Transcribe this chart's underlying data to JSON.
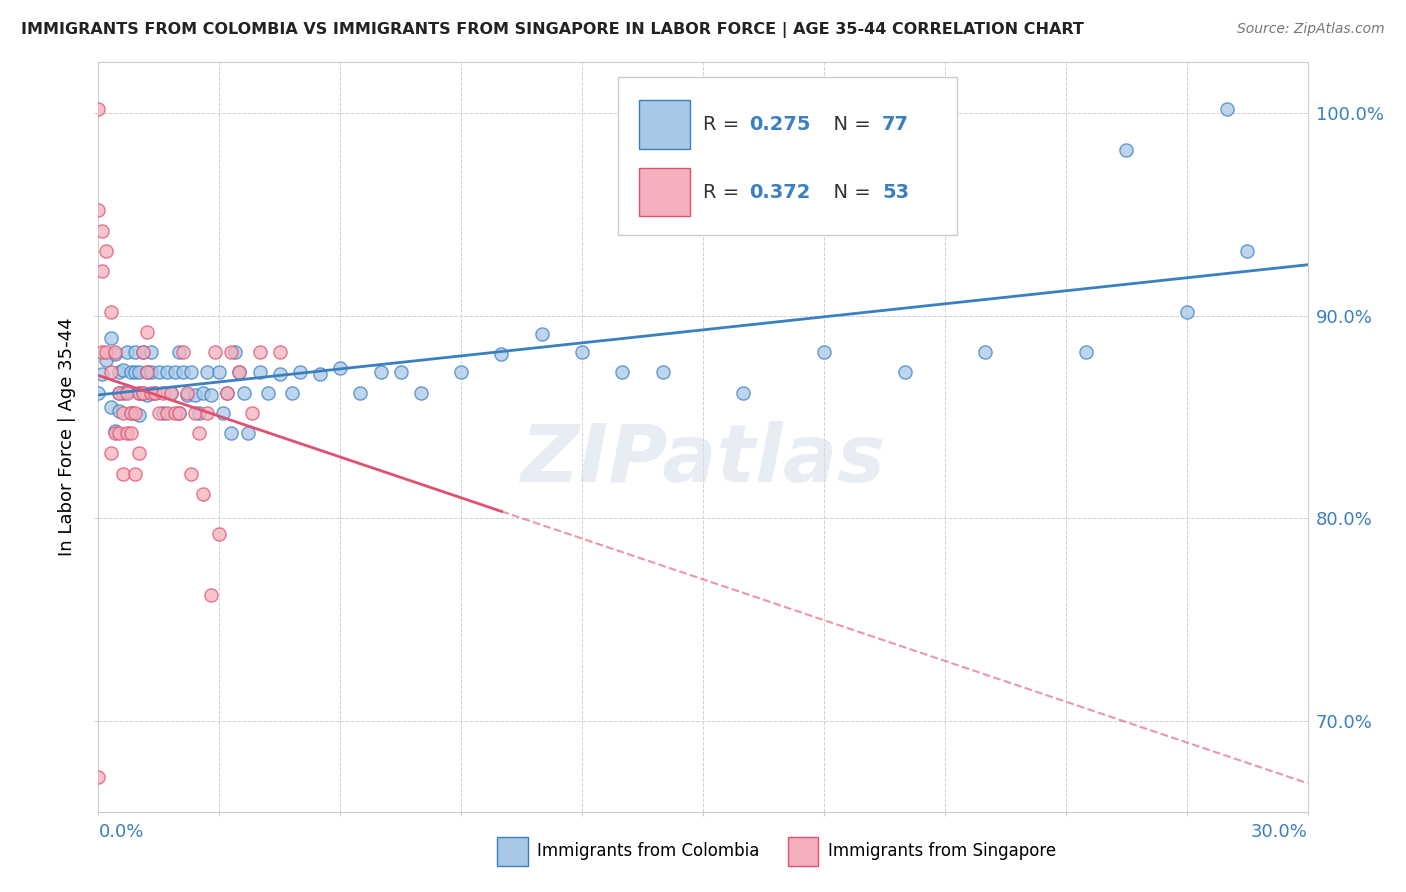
{
  "title": "IMMIGRANTS FROM COLOMBIA VS IMMIGRANTS FROM SINGAPORE IN LABOR FORCE | AGE 35-44 CORRELATION CHART",
  "source": "Source: ZipAtlas.com",
  "ylabel": "In Labor Force | Age 35-44",
  "colombia_color": "#a8c8e8",
  "singapore_color": "#f4b0bc",
  "trend_colombia_color": "#3a7fc1",
  "trend_singapore_color": "#e05070",
  "watermark": "ZIPatlas",
  "xlim": [
    0.0,
    0.3
  ],
  "ylim": [
    0.655,
    1.025
  ],
  "y_ticks": [
    0.7,
    0.8,
    0.9,
    1.0
  ],
  "colombia_scatter_x": [
    0.0,
    0.001,
    0.002,
    0.003,
    0.003,
    0.004,
    0.004,
    0.005,
    0.005,
    0.005,
    0.006,
    0.006,
    0.007,
    0.007,
    0.008,
    0.008,
    0.009,
    0.009,
    0.01,
    0.01,
    0.01,
    0.011,
    0.011,
    0.012,
    0.012,
    0.013,
    0.013,
    0.014,
    0.015,
    0.016,
    0.017,
    0.018,
    0.019,
    0.02,
    0.02,
    0.021,
    0.022,
    0.023,
    0.024,
    0.025,
    0.026,
    0.027,
    0.028,
    0.03,
    0.031,
    0.032,
    0.033,
    0.034,
    0.035,
    0.036,
    0.037,
    0.04,
    0.042,
    0.045,
    0.048,
    0.05,
    0.055,
    0.06,
    0.065,
    0.07,
    0.075,
    0.08,
    0.09,
    0.1,
    0.11,
    0.12,
    0.13,
    0.14,
    0.16,
    0.18,
    0.2,
    0.22,
    0.245,
    0.255,
    0.27,
    0.28,
    0.285
  ],
  "colombia_scatter_y": [
    0.862,
    0.871,
    0.878,
    0.855,
    0.889,
    0.843,
    0.881,
    0.862,
    0.872,
    0.853,
    0.873,
    0.862,
    0.882,
    0.863,
    0.872,
    0.852,
    0.882,
    0.872,
    0.872,
    0.862,
    0.851,
    0.882,
    0.862,
    0.872,
    0.861,
    0.882,
    0.872,
    0.862,
    0.872,
    0.852,
    0.872,
    0.862,
    0.872,
    0.852,
    0.882,
    0.872,
    0.861,
    0.872,
    0.861,
    0.852,
    0.862,
    0.872,
    0.861,
    0.872,
    0.852,
    0.862,
    0.842,
    0.882,
    0.872,
    0.862,
    0.842,
    0.872,
    0.862,
    0.871,
    0.862,
    0.872,
    0.871,
    0.874,
    0.862,
    0.872,
    0.872,
    0.862,
    0.872,
    0.881,
    0.891,
    0.882,
    0.872,
    0.872,
    0.862,
    0.882,
    0.872,
    0.882,
    0.882,
    0.982,
    0.902,
    1.002,
    0.932
  ],
  "singapore_scatter_x": [
    0.0,
    0.0,
    0.0,
    0.001,
    0.001,
    0.001,
    0.002,
    0.002,
    0.003,
    0.003,
    0.003,
    0.004,
    0.004,
    0.005,
    0.005,
    0.006,
    0.006,
    0.007,
    0.007,
    0.008,
    0.008,
    0.009,
    0.009,
    0.01,
    0.01,
    0.011,
    0.011,
    0.012,
    0.012,
    0.013,
    0.014,
    0.015,
    0.016,
    0.017,
    0.018,
    0.019,
    0.02,
    0.021,
    0.022,
    0.023,
    0.024,
    0.025,
    0.026,
    0.027,
    0.028,
    0.029,
    0.03,
    0.032,
    0.033,
    0.035,
    0.038,
    0.04,
    0.045
  ],
  "singapore_scatter_y": [
    1.002,
    0.952,
    0.672,
    0.942,
    0.882,
    0.922,
    0.932,
    0.882,
    0.902,
    0.872,
    0.832,
    0.842,
    0.882,
    0.862,
    0.842,
    0.852,
    0.822,
    0.842,
    0.862,
    0.852,
    0.842,
    0.852,
    0.822,
    0.832,
    0.862,
    0.862,
    0.882,
    0.872,
    0.892,
    0.862,
    0.862,
    0.852,
    0.862,
    0.852,
    0.862,
    0.852,
    0.852,
    0.882,
    0.862,
    0.822,
    0.852,
    0.842,
    0.812,
    0.852,
    0.762,
    0.882,
    0.792,
    0.862,
    0.882,
    0.872,
    0.852,
    0.882,
    0.882
  ],
  "singapore_trend_x_end": 0.1,
  "singapore_trend_x_dashed_end": 0.3,
  "legend_col_R": "0.275",
  "legend_col_N": "77",
  "legend_sing_R": "0.372",
  "legend_sing_N": "53"
}
